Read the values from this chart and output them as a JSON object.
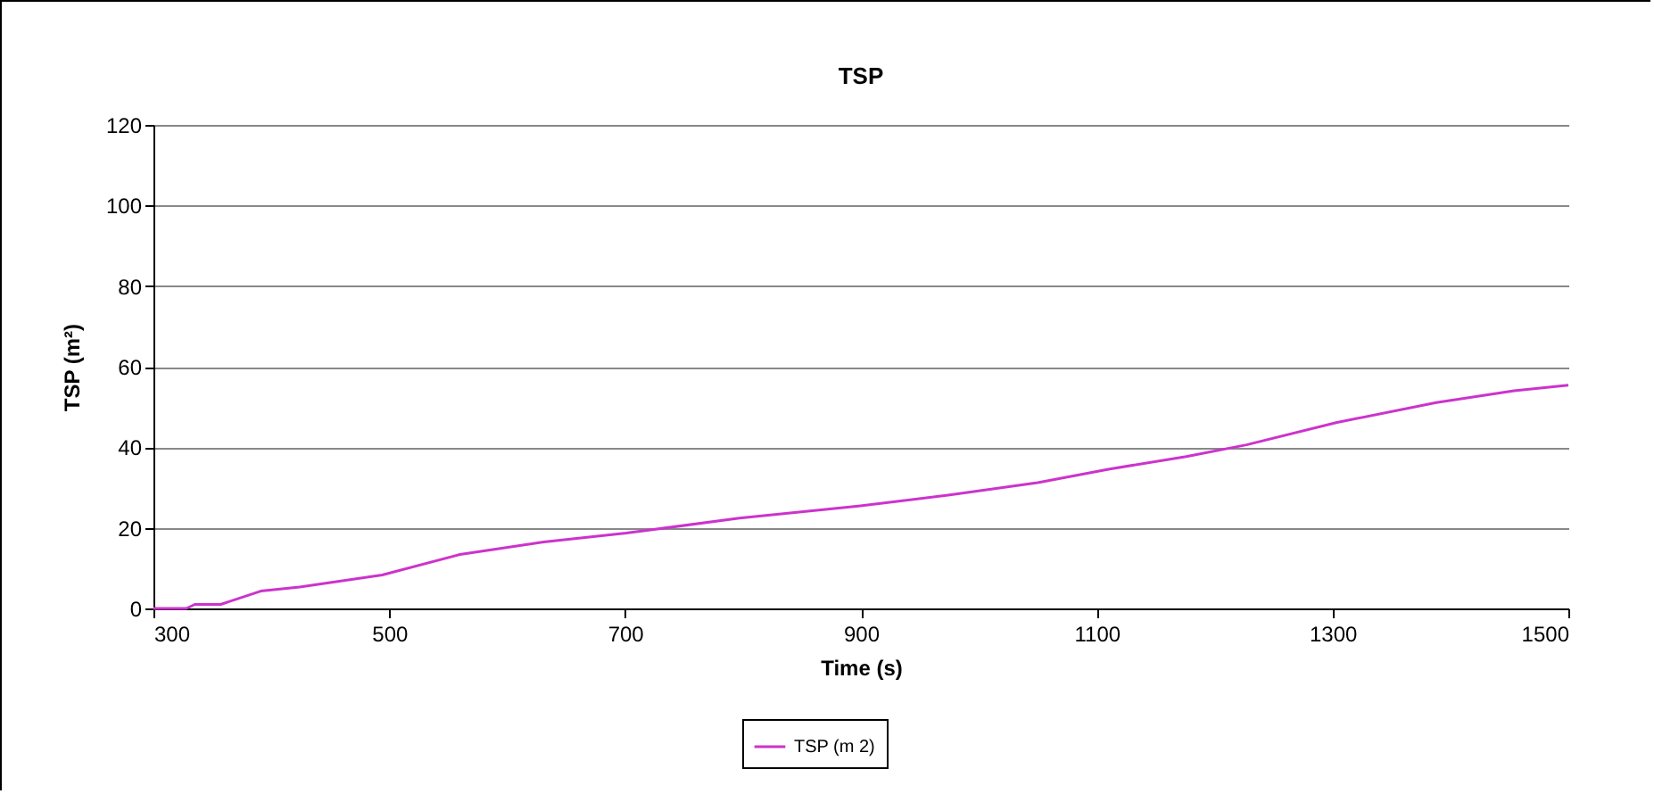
{
  "chart_data": {
    "type": "line",
    "title": "TSP",
    "xlabel": "Time (s)",
    "ylabel": "TSP (m²)",
    "x": [
      300,
      328,
      335,
      357,
      391,
      424,
      494,
      560,
      631,
      701,
      797,
      898,
      974,
      1050,
      1111,
      1176,
      1227,
      1303,
      1388,
      1454,
      1500
    ],
    "series": [
      {
        "name": "TSP (m 2)",
        "color": "#cc33cc",
        "values": [
          0,
          0,
          1,
          1,
          4.3,
          5.3,
          8.3,
          13.4,
          16.5,
          18.7,
          22.4,
          25.4,
          28.1,
          31.2,
          34.6,
          37.7,
          40.6,
          46.1,
          51.1,
          54,
          55.4
        ]
      }
    ],
    "xlim": [
      300,
      1500
    ],
    "ylim": [
      0,
      120
    ],
    "xticks": [
      300,
      500,
      700,
      900,
      1100,
      1300,
      1500
    ],
    "yticks": [
      0,
      20,
      40,
      60,
      80,
      100,
      120
    ],
    "grid": "y",
    "legend": "bottom"
  }
}
